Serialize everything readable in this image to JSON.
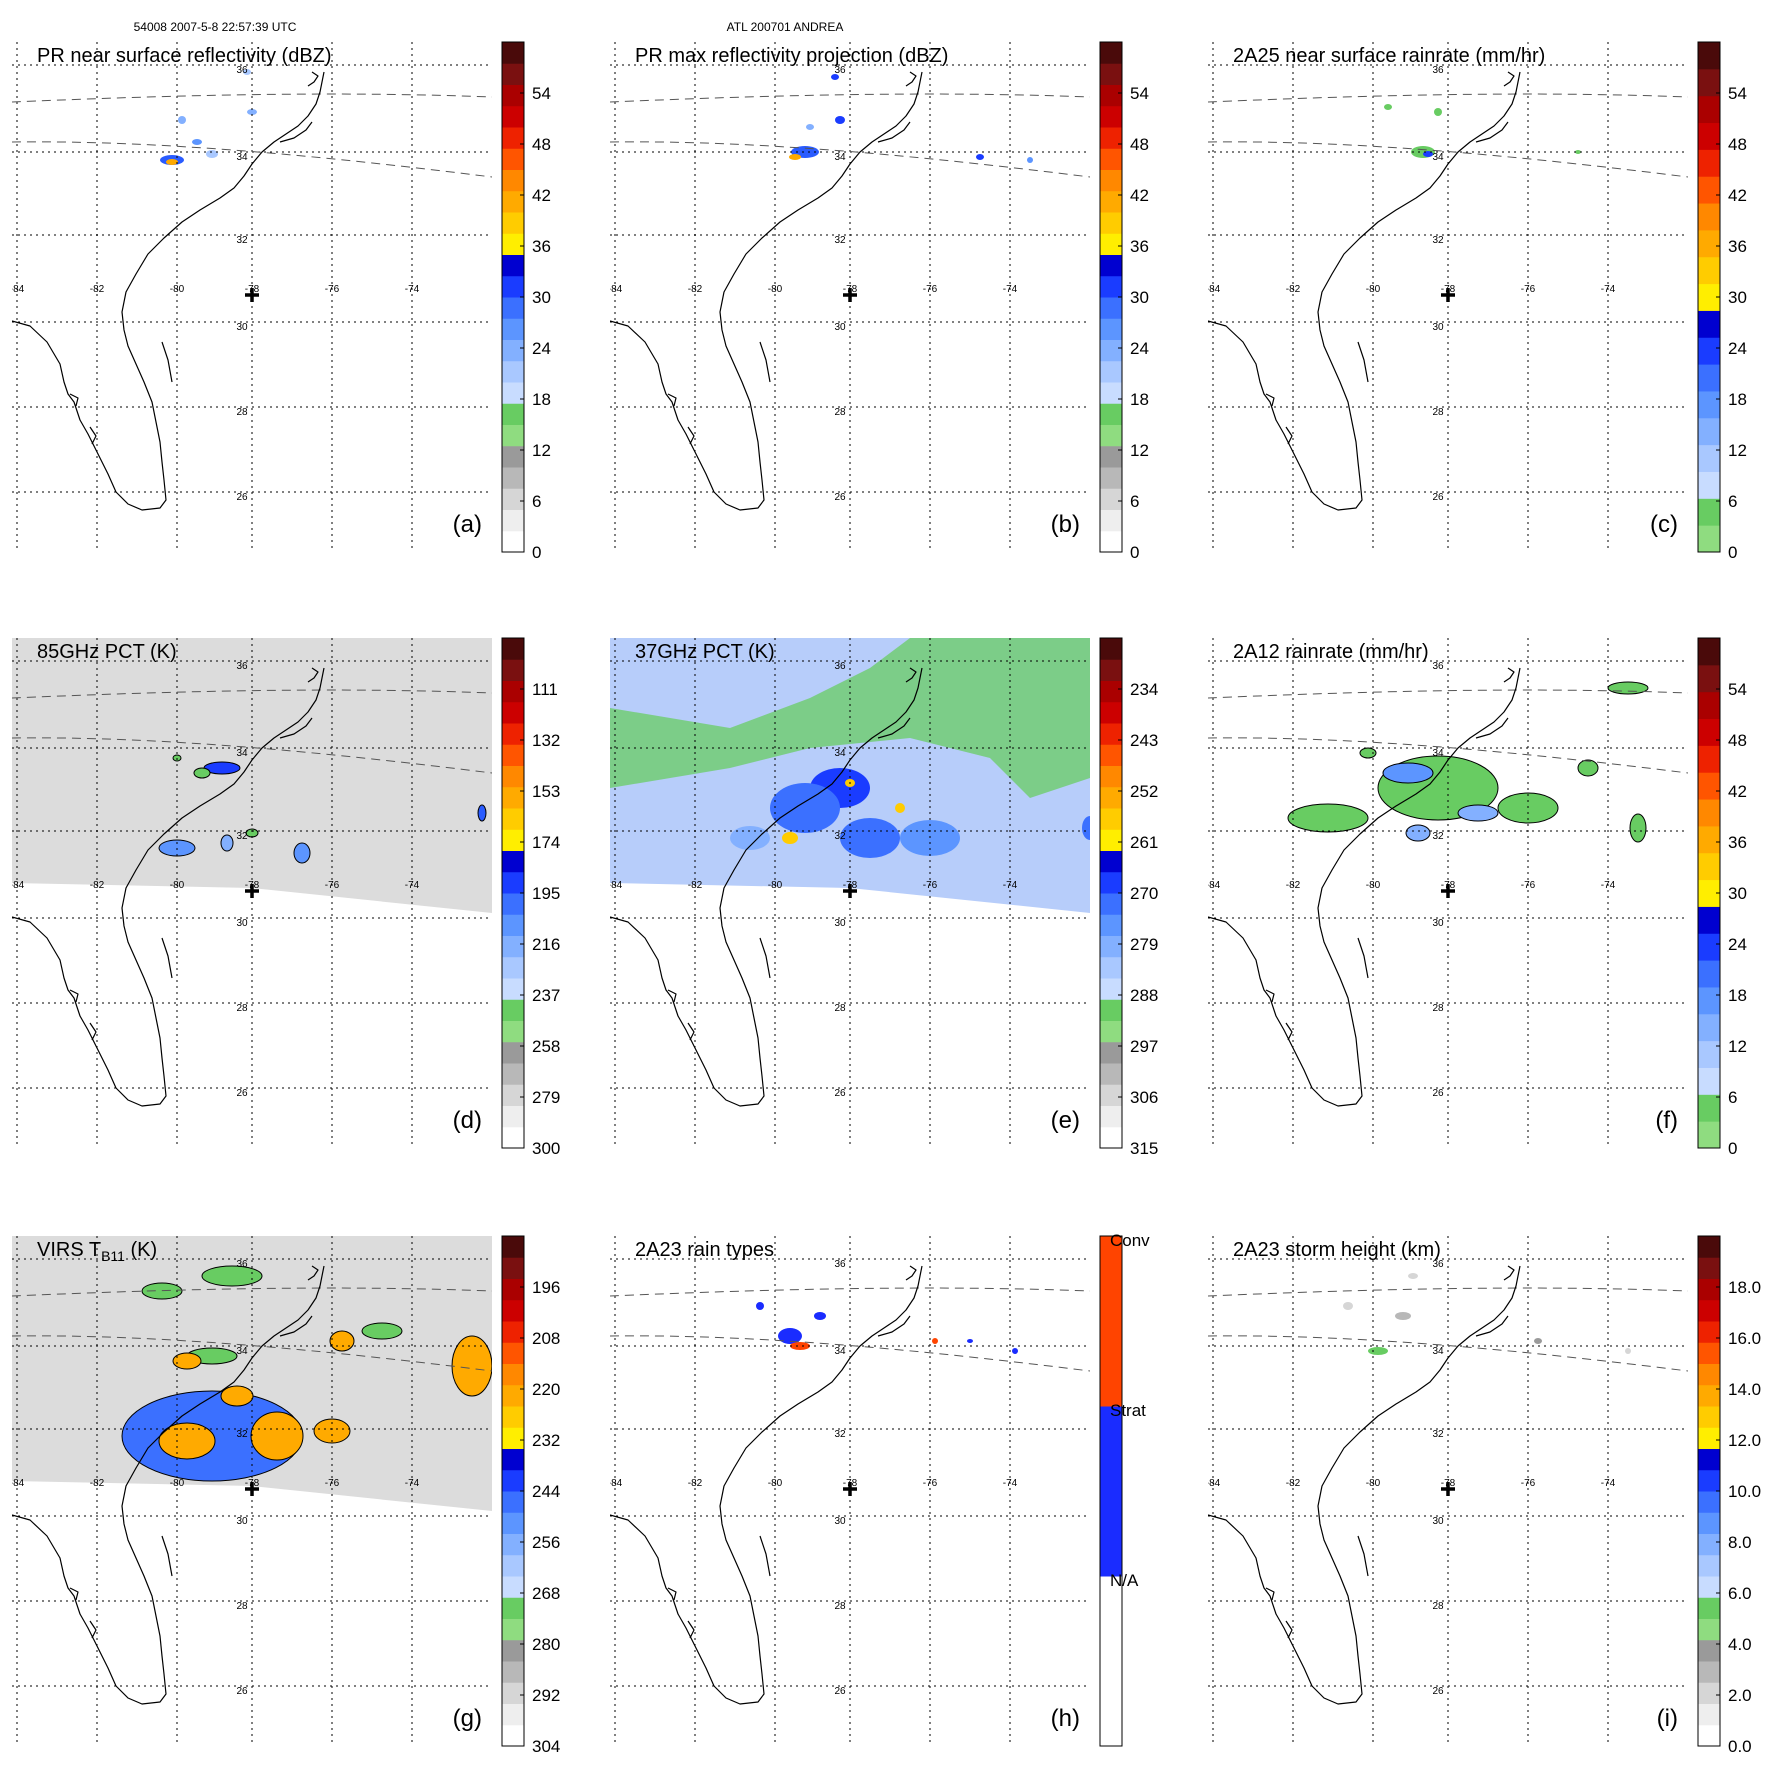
{
  "header": {
    "left": "54008 2007-5-8 22:57:39 UTC",
    "center": "ATL 200701 ANDREA"
  },
  "grid_labels": {
    "lon": [
      "-84",
      "-82",
      "-80",
      "-78",
      "-76",
      "-74"
    ],
    "lat": [
      "36",
      "34",
      "32",
      "30",
      "28",
      "26"
    ]
  },
  "panels": [
    {
      "id": "a",
      "title": "PR near surface reflectivity (dBZ)",
      "label": "(a)",
      "colorbar": {
        "labels": [
          "54",
          "48",
          "42",
          "36",
          "30",
          "24",
          "18",
          "12",
          "6",
          "0"
        ],
        "palette": "refl"
      }
    },
    {
      "id": "b",
      "title": "PR max reflectivity projection (dBZ)",
      "label": "(b)",
      "colorbar": {
        "labels": [
          "54",
          "48",
          "42",
          "36",
          "30",
          "24",
          "18",
          "12",
          "6",
          "0"
        ],
        "palette": "refl"
      }
    },
    {
      "id": "c",
      "title": "2A25 near surface rainrate (mm/hr)",
      "label": "(c)",
      "colorbar": {
        "labels": [
          "54",
          "48",
          "42",
          "36",
          "30",
          "24",
          "18",
          "12",
          "6",
          "0"
        ],
        "palette": "rain"
      }
    },
    {
      "id": "d",
      "title": "85GHz PCT (K)",
      "label": "(d)",
      "colorbar": {
        "labels": [
          "111",
          "132",
          "153",
          "174",
          "195",
          "216",
          "237",
          "258",
          "279",
          "300"
        ],
        "palette": "refl"
      }
    },
    {
      "id": "e",
      "title": "37GHz PCT (K)",
      "label": "(e)",
      "colorbar": {
        "labels": [
          "234",
          "243",
          "252",
          "261",
          "270",
          "279",
          "288",
          "297",
          "306",
          "315"
        ],
        "palette": "refl"
      }
    },
    {
      "id": "f",
      "title": "2A12 rainrate (mm/hr)",
      "label": "(f)",
      "colorbar": {
        "labels": [
          "54",
          "48",
          "42",
          "36",
          "30",
          "24",
          "18",
          "12",
          "6",
          "0"
        ],
        "palette": "rain"
      }
    },
    {
      "id": "g",
      "title": "VIRS T",
      "title_sub": "B11",
      "title_tail": " (K)",
      "label": "(g)",
      "colorbar": {
        "labels": [
          "196",
          "208",
          "220",
          "232",
          "244",
          "256",
          "268",
          "280",
          "292",
          "304"
        ],
        "palette": "refl"
      }
    },
    {
      "id": "h",
      "title": "2A23 rain types",
      "label": "(h)",
      "colorbar": {
        "labels": [
          "Conv",
          "Strat",
          "N/A"
        ],
        "palette": "types"
      }
    },
    {
      "id": "i",
      "title": "2A23 storm height (km)",
      "label": "(i)",
      "colorbar": {
        "labels": [
          "18.0",
          "16.0",
          "14.0",
          "12.0",
          "10.0",
          "8.0",
          "6.0",
          "4.0",
          "2.0",
          "0.0"
        ],
        "palette": "refl"
      }
    }
  ],
  "palettes": {
    "refl": [
      "#ffffff",
      "#eeeeee",
      "#d6d6d6",
      "#b8b8b8",
      "#9a9a9a",
      "#8fdc80",
      "#68cc62",
      "#c8dcff",
      "#a9c8ff",
      "#83b0ff",
      "#5c95ff",
      "#3b70ff",
      "#1a3cff",
      "#0000d0",
      "#ffee00",
      "#ffcc00",
      "#ffaa00",
      "#ff8800",
      "#ff5500",
      "#ee2200",
      "#cc0000",
      "#aa0000",
      "#7a1010",
      "#4a0a0a"
    ],
    "rain": [
      "#8fdc80",
      "#68cc62",
      "#c8dcff",
      "#a9c8ff",
      "#83b0ff",
      "#5c95ff",
      "#3b70ff",
      "#1a3cff",
      "#0000d0",
      "#ffee00",
      "#ffcc00",
      "#ffaa00",
      "#ff8800",
      "#ff5500",
      "#ee2200",
      "#cc0000",
      "#aa0000",
      "#7a1010",
      "#4a0a0a"
    ],
    "types": [
      "#ffffff",
      "#1a2cff",
      "#ff4400"
    ]
  }
}
